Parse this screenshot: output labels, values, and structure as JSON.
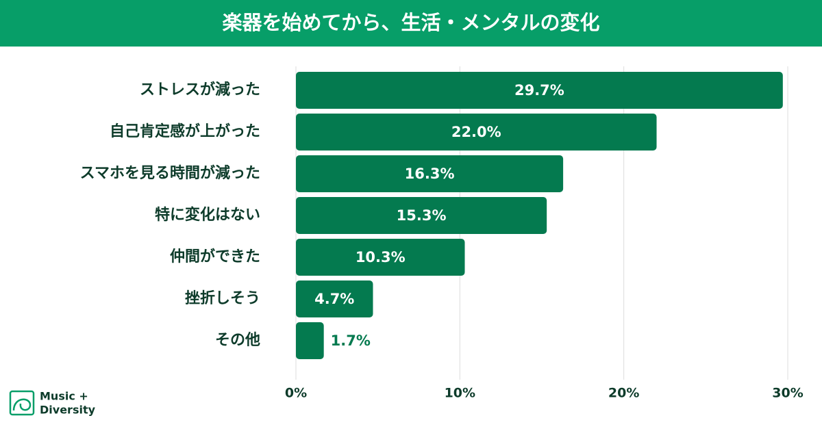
{
  "chart_data": {
    "type": "bar",
    "orientation": "horizontal",
    "title": "楽器を始めてから、生活・メンタルの変化",
    "categories": [
      "ストレスが減った",
      "自己肯定感が上がった",
      "スマホを見る時間が減った",
      "特に変化はない",
      "仲間ができた",
      "挫折しそう",
      "その他"
    ],
    "values": [
      29.7,
      22.0,
      16.3,
      15.3,
      10.3,
      4.7,
      1.7
    ],
    "value_labels": [
      "29.7%",
      "22.0%",
      "16.3%",
      "15.3%",
      "10.3%",
      "4.7%",
      "1.7%"
    ],
    "color": "#047a4f",
    "xlim": [
      0,
      30
    ],
    "xticks": [
      {
        "value": 0,
        "label": "0%"
      },
      {
        "value": 10,
        "label": "10%"
      },
      {
        "value": 20,
        "label": "20%"
      },
      {
        "value": 30,
        "label": "30%"
      }
    ],
    "grid": true
  },
  "logo": {
    "line1": "Music +",
    "line2": "Diversity"
  }
}
